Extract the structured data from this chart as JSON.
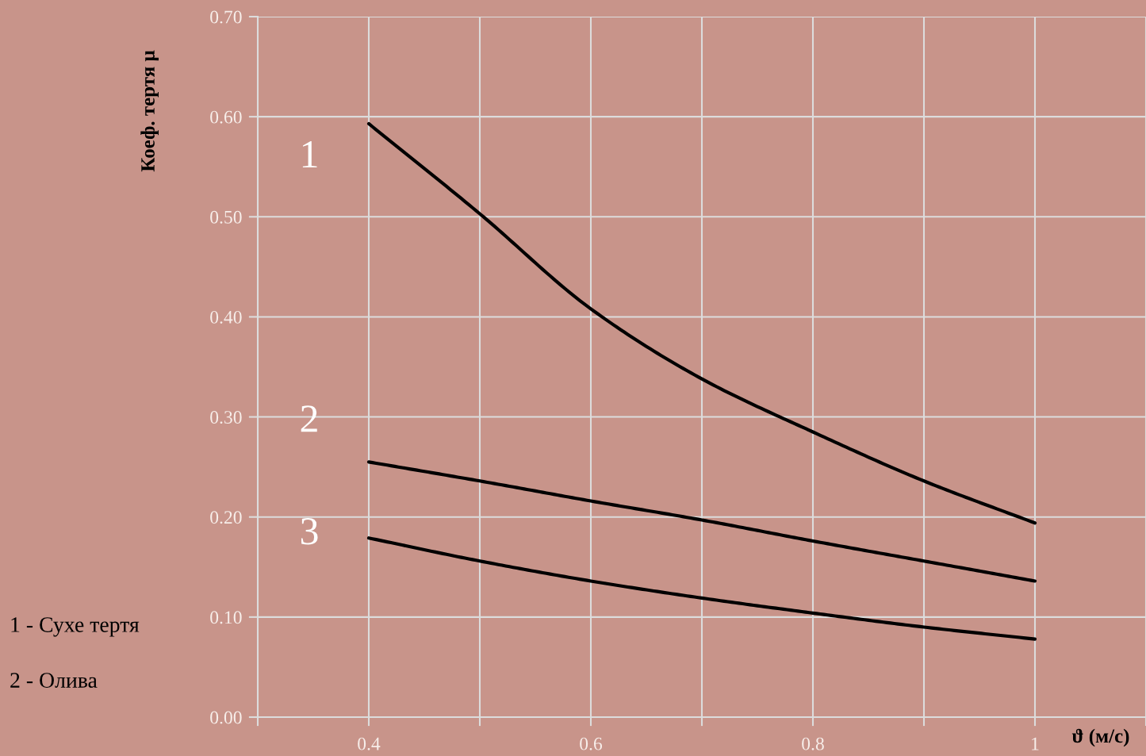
{
  "chart_data": {
    "type": "line",
    "xlabel": "ϑ (м/с)",
    "ylabel": "Коеф. тертя μ",
    "x": [
      0.4,
      0.5,
      0.6,
      0.7,
      0.8,
      0.9,
      1.0
    ],
    "series": [
      {
        "name": "1",
        "color": "#000000",
        "values": [
          0.593,
          0.503,
          0.408,
          0.338,
          0.285,
          0.236,
          0.194
        ]
      },
      {
        "name": "2",
        "color": "#000000",
        "values": [
          0.255,
          0.236,
          0.216,
          0.197,
          0.176,
          0.156,
          0.136
        ]
      },
      {
        "name": "3",
        "color": "#000000",
        "values": [
          0.179,
          0.156,
          0.136,
          0.119,
          0.104,
          0.09,
          0.078
        ]
      }
    ],
    "xlim": [
      0.3,
      1.1
    ],
    "xticks": [
      {
        "value": 0.3,
        "label": null
      },
      0.4,
      {
        "value": 0.5,
        "label": null
      },
      0.6,
      {
        "value": 0.7,
        "label": null
      },
      0.8,
      {
        "value": 0.9,
        "label": null
      },
      {
        "value": 1.0,
        "label": "1"
      },
      {
        "value": 1.1,
        "label": null
      }
    ],
    "ylim": [
      0,
      0.7
    ],
    "yticks": [
      {
        "value": 0,
        "label": "0.00"
      },
      {
        "value": 0.1,
        "label": "0.10"
      },
      {
        "value": 0.2,
        "label": "0.20"
      },
      {
        "value": 0.3,
        "label": "0.30"
      },
      {
        "value": 0.4,
        "label": "0.40"
      },
      {
        "value": 0.5,
        "label": "0.50"
      },
      {
        "value": 0.6,
        "label": "0.60"
      },
      {
        "value": 0.7,
        "label": "0.70"
      }
    ],
    "grid": true,
    "marker": "none",
    "line_style": "solid",
    "annotations": [
      "1 - Сухе тертя",
      "2 - Олива"
    ]
  }
}
